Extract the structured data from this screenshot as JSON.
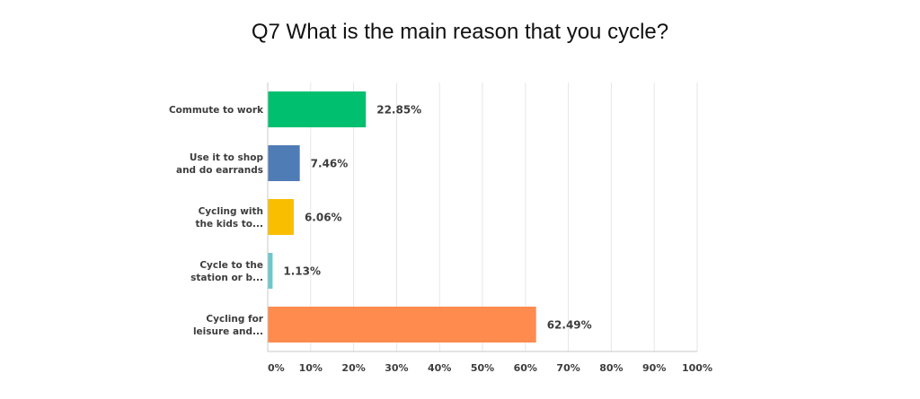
{
  "chart_data": {
    "type": "bar",
    "orientation": "horizontal",
    "title": "Q7 What is the main reason that you cycle?",
    "categories": [
      [
        "Commute to work"
      ],
      [
        "Use it to shop",
        "and do earrands"
      ],
      [
        "Cycling with",
        "the kids to..."
      ],
      [
        "Cycle to the",
        "station or b..."
      ],
      [
        "Cycling for",
        "leisure and..."
      ]
    ],
    "values": [
      22.85,
      7.46,
      6.06,
      1.13,
      62.49
    ],
    "value_labels": [
      "22.85%",
      "7.46%",
      "6.06%",
      "1.13%",
      "62.49%"
    ],
    "colors": [
      "#00bf6f",
      "#507cb6",
      "#f9be00",
      "#6bc8cd",
      "#ff8b4f"
    ],
    "xlim": [
      0,
      100
    ],
    "xticks": [
      "0%",
      "10%",
      "20%",
      "30%",
      "40%",
      "50%",
      "60%",
      "70%",
      "80%",
      "90%",
      "100%"
    ],
    "grid": true,
    "legend": "none"
  }
}
